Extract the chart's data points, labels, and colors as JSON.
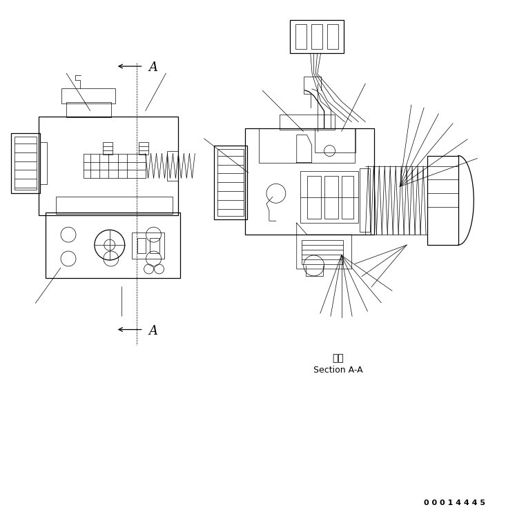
{
  "background_color": "#ffffff",
  "line_color": "#000000",
  "figure_width": 7.33,
  "figure_height": 7.45,
  "dpi": 100,
  "section_label_japanese": "断面",
  "section_label_english": "Section A-A",
  "part_number": "0 0 0 1 4 4 4 5",
  "lw_thin": 0.5,
  "lw_med": 0.9,
  "lw_thick": 1.4
}
